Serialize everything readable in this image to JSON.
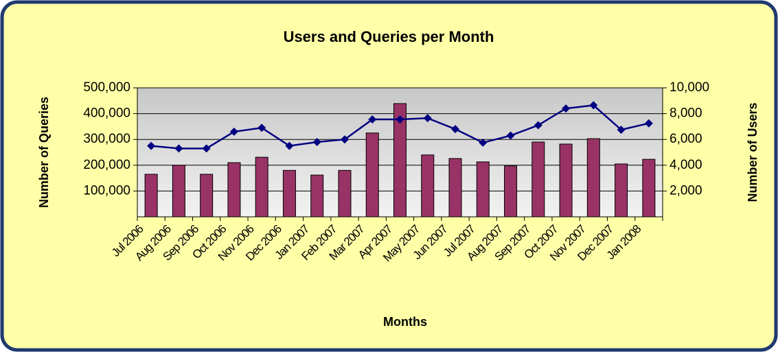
{
  "chart_data": {
    "type": "bar",
    "title": "Users and Queries per Month",
    "x_label": "Months",
    "y_label": "Number of Queries",
    "y2_label": "Number of Users",
    "categories": [
      "Jul 2006",
      "Aug 2006",
      "Sep 2006",
      "Oct 2006",
      "Nov 2006",
      "Dec 2006",
      "Jan 2007",
      "Feb 2007",
      "Mar 2007",
      "Apr 2007",
      "May 2007",
      "Jun 2007",
      "Jul 2007",
      "Aug 2007",
      "Sep 2007",
      "Oct 2007",
      "Nov 2007",
      "Dec 2007",
      "Jan 2008"
    ],
    "series": [
      {
        "type": "bar",
        "color": "#993366",
        "values": [
          165000,
          200000,
          165000,
          210000,
          231000,
          180000,
          162000,
          180000,
          325000,
          439000,
          240000,
          226000,
          213000,
          197000,
          290000,
          282000,
          303000,
          205000,
          223000
        ]
      },
      {
        "type": "line",
        "axis": "y2",
        "color": "#000080",
        "values": [
          5500,
          5300,
          5300,
          6600,
          6900,
          5500,
          5800,
          6000,
          7550,
          7550,
          7650,
          6800,
          5750,
          6300,
          7100,
          8400,
          8650,
          6750,
          7250
        ]
      }
    ],
    "ylim": [
      0,
      500000
    ],
    "yticks": [
      {
        "value": 100000,
        "label": "100,000"
      },
      {
        "value": 200000,
        "label": "200,000"
      },
      {
        "value": 300000,
        "label": "300,000"
      },
      {
        "value": 400000,
        "label": "400,000"
      },
      {
        "value": 500000,
        "label": "500,000"
      }
    ],
    "y2lim": [
      0,
      10000
    ],
    "y2ticks": [
      {
        "value": 2000,
        "label": "2,000"
      },
      {
        "value": 4000,
        "label": "4,000"
      },
      {
        "value": 6000,
        "label": "6,000"
      },
      {
        "value": 8000,
        "label": "8,000"
      },
      {
        "value": 10000,
        "label": "10,000"
      }
    ],
    "grid": true
  }
}
